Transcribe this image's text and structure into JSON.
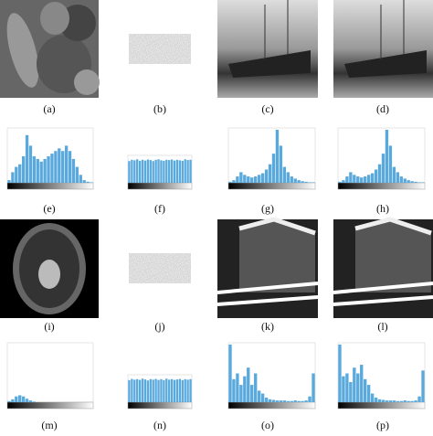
{
  "panels": [
    {
      "label": "(a)",
      "kind": "image"
    },
    {
      "label": "(b)",
      "kind": "noise"
    },
    {
      "label": "(c)",
      "kind": "image"
    },
    {
      "label": "(d)",
      "kind": "image"
    },
    {
      "label": "(e)",
      "kind": "histogram",
      "values": [
        0.05,
        0.2,
        0.3,
        0.35,
        0.5,
        0.9,
        0.7,
        0.5,
        0.45,
        0.4,
        0.45,
        0.5,
        0.55,
        0.6,
        0.65,
        0.6,
        0.7,
        0.6,
        0.45,
        0.3,
        0.15,
        0.05,
        0.02,
        0.01
      ]
    },
    {
      "label": "(f)",
      "kind": "histogram",
      "values": [
        0.85,
        0.9,
        0.88,
        0.92,
        0.86,
        0.9,
        0.87,
        0.91,
        0.89,
        0.85,
        0.9,
        0.92,
        0.88,
        0.86,
        0.9,
        0.89,
        0.91,
        0.87,
        0.9,
        0.88,
        0.86,
        0.92,
        0.89,
        0.9
      ]
    },
    {
      "label": "(g)",
      "kind": "histogram",
      "values": [
        0.02,
        0.05,
        0.12,
        0.2,
        0.15,
        0.12,
        0.1,
        0.12,
        0.15,
        0.18,
        0.25,
        0.35,
        0.55,
        1.0,
        0.7,
        0.3,
        0.2,
        0.12,
        0.08,
        0.05,
        0.03,
        0.02,
        0.01,
        0.01
      ]
    },
    {
      "label": "(h)",
      "kind": "histogram",
      "values": [
        0.02,
        0.05,
        0.12,
        0.2,
        0.15,
        0.12,
        0.1,
        0.12,
        0.15,
        0.18,
        0.25,
        0.35,
        0.55,
        1.0,
        0.7,
        0.3,
        0.2,
        0.12,
        0.08,
        0.05,
        0.03,
        0.02,
        0.01,
        0.01
      ]
    },
    {
      "label": "(i)",
      "kind": "image"
    },
    {
      "label": "(j)",
      "kind": "noise"
    },
    {
      "label": "(k)",
      "kind": "image"
    },
    {
      "label": "(l)",
      "kind": "image"
    },
    {
      "label": "(m)",
      "kind": "histogram",
      "values": [
        0.02,
        0.05,
        0.1,
        0.12,
        0.1,
        0.06,
        0.03,
        0.01,
        0,
        0,
        0,
        0,
        0,
        0,
        0,
        0,
        0,
        0,
        0,
        0,
        0,
        0,
        0,
        0
      ]
    },
    {
      "label": "(n)",
      "kind": "histogram",
      "values": [
        0.86,
        0.91,
        0.88,
        0.9,
        0.87,
        0.92,
        0.89,
        0.85,
        0.9,
        0.88,
        0.91,
        0.87,
        0.9,
        0.86,
        0.92,
        0.88,
        0.9,
        0.87,
        0.89,
        0.91,
        0.86,
        0.9,
        0.88,
        0.9
      ]
    },
    {
      "label": "(o)",
      "kind": "histogram",
      "values": [
        1,
        0.4,
        0.5,
        0.3,
        0.45,
        0.6,
        0.3,
        0.5,
        0.2,
        0.15,
        0.08,
        0.05,
        0.04,
        0.03,
        0.03,
        0.03,
        0.02,
        0.02,
        0.03,
        0.02,
        0.02,
        0.03,
        0.1,
        0.5
      ]
    },
    {
      "label": "(p)",
      "kind": "histogram",
      "values": [
        1,
        0.45,
        0.5,
        0.35,
        0.6,
        0.5,
        0.65,
        0.4,
        0.3,
        0.15,
        0.08,
        0.05,
        0.04,
        0.03,
        0.03,
        0.03,
        0.02,
        0.02,
        0.03,
        0.02,
        0.02,
        0.03,
        0.1,
        0.55
      ]
    }
  ]
}
